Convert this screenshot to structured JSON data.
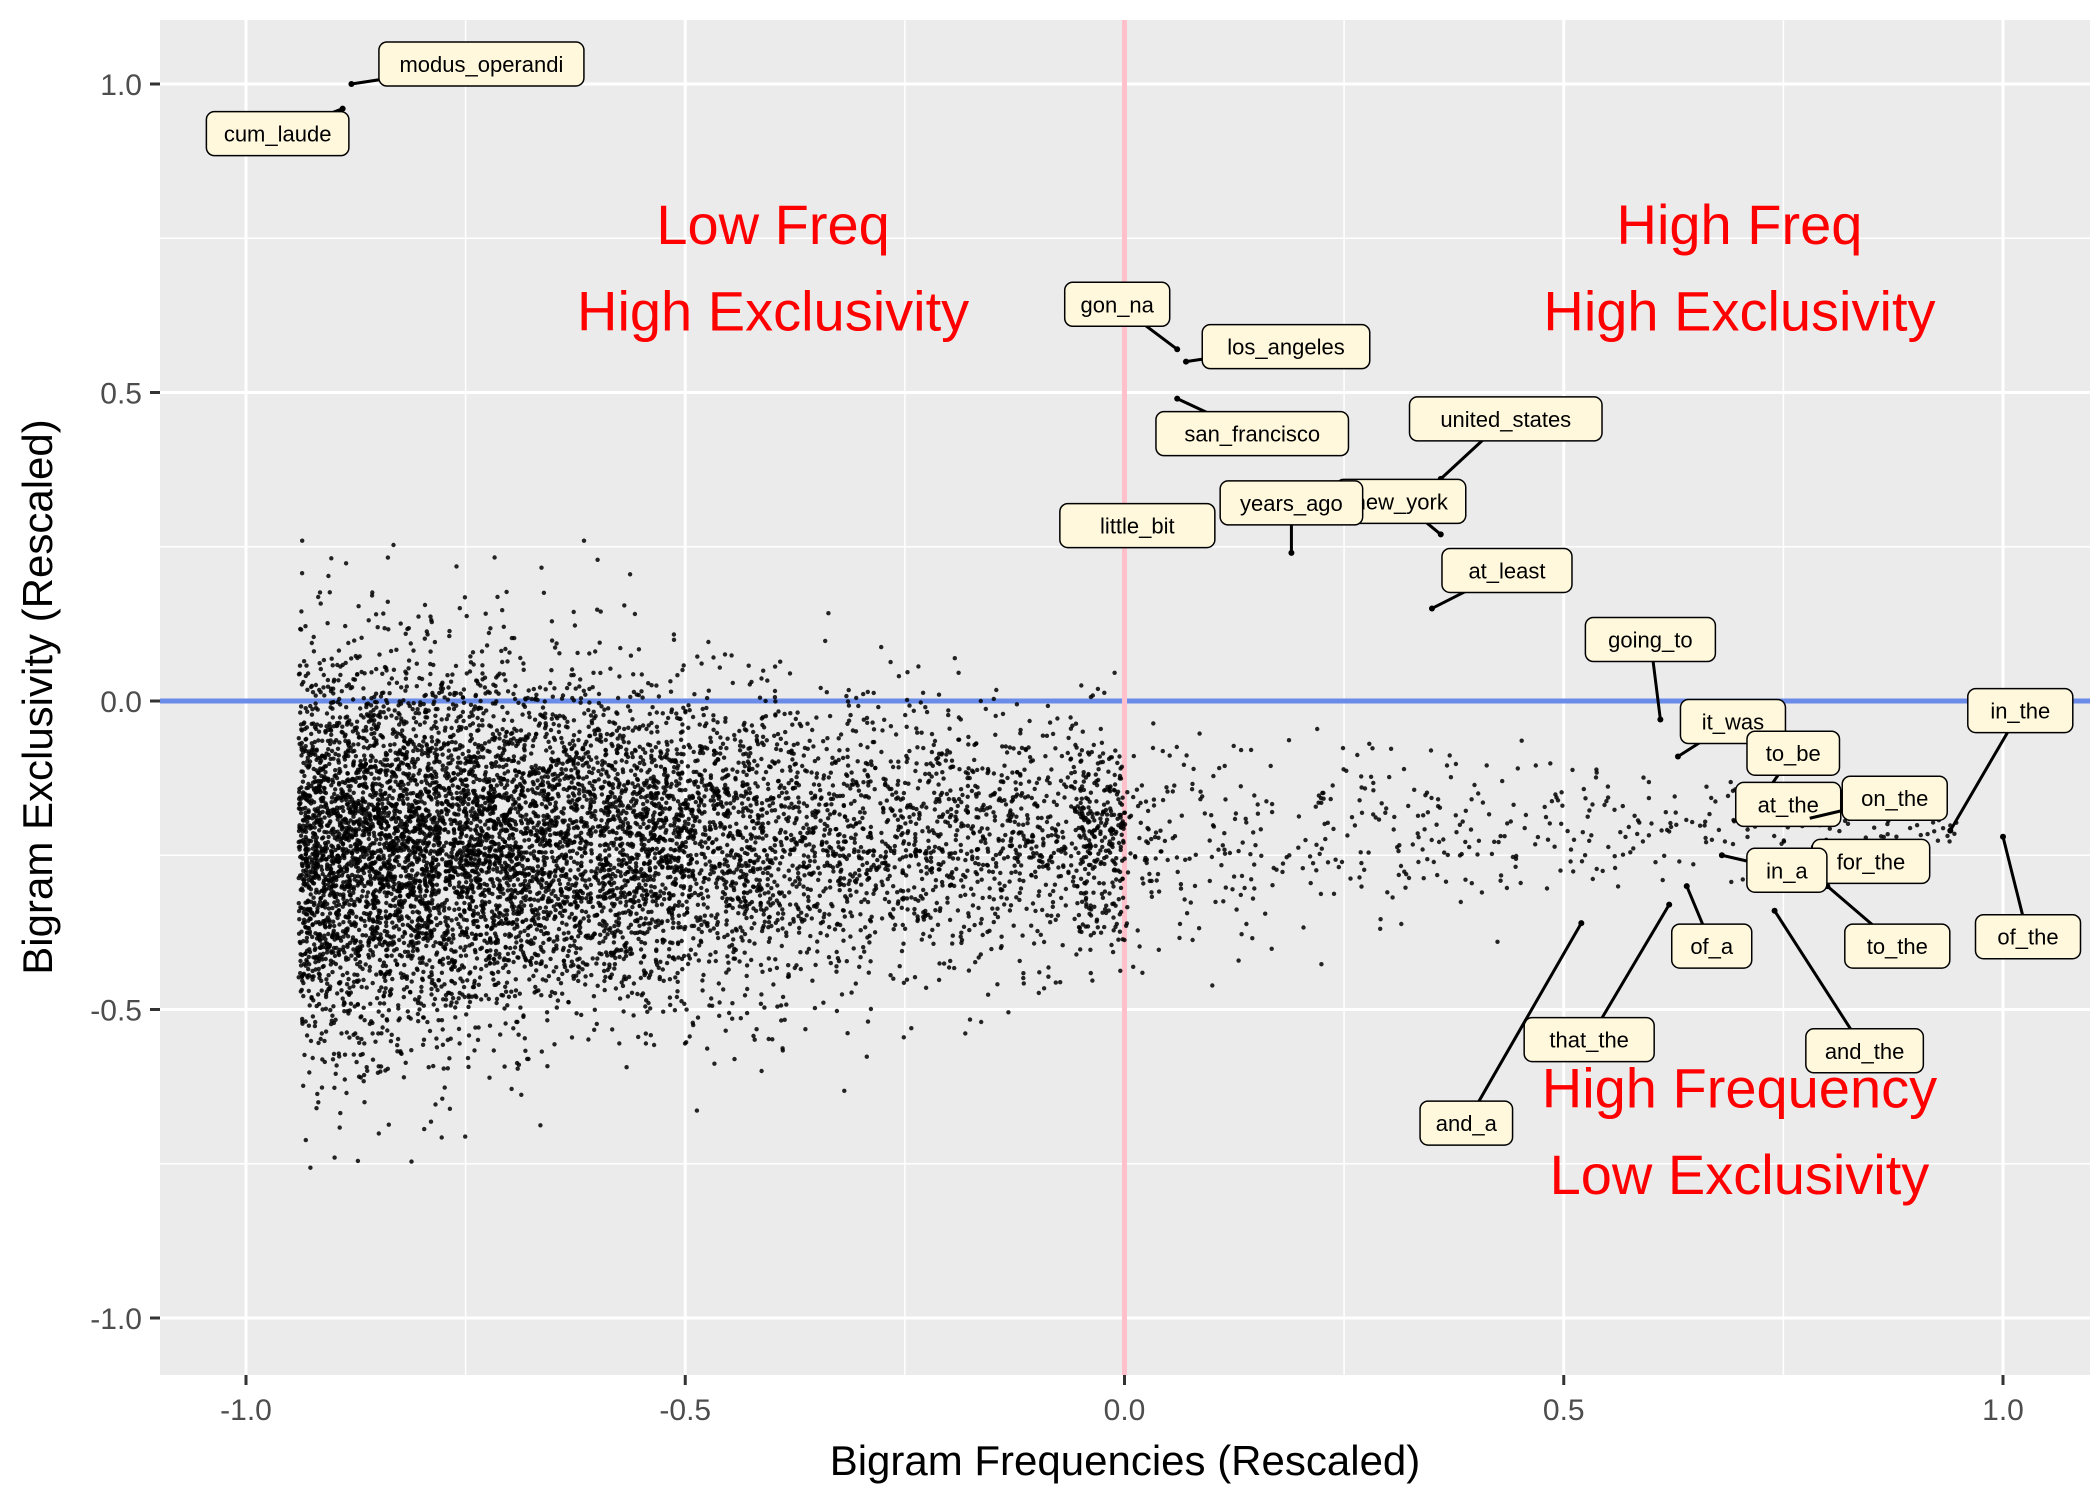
{
  "chart_data": {
    "type": "scatter",
    "title": "",
    "xlabel": "Bigram Frequencies (Rescaled)",
    "ylabel": "Bigram Exclusivity (Rescaled)",
    "xlim": [
      -1.2,
      1.2
    ],
    "ylim": [
      -1.1,
      1.1
    ],
    "x_ticks": [
      {
        "value": -1.0,
        "label": "-1.0"
      },
      {
        "value": -0.5,
        "label": "-0.5"
      },
      {
        "value": 0.0,
        "label": "0.0"
      },
      {
        "value": 0.5,
        "label": "0.5"
      },
      {
        "value": 1.0,
        "label": "1.0"
      }
    ],
    "y_ticks": [
      {
        "value": 1.0,
        "label": "1.0"
      },
      {
        "value": 0.5,
        "label": "0.5"
      },
      {
        "value": 0.0,
        "label": "0.0"
      },
      {
        "value": -0.5,
        "label": "-0.5"
      },
      {
        "value": -1.0,
        "label": "-1.0"
      }
    ],
    "grid": true,
    "background": "#ebebeb",
    "reference_lines": [
      {
        "orientation": "horizontal",
        "value": 0.0,
        "color": "#6a8be8"
      },
      {
        "orientation": "vertical",
        "value": 0.0,
        "color": "#ffc0cb"
      }
    ],
    "annotations": [
      {
        "text": "Low Freq",
        "x": -0.4,
        "y": 0.77,
        "color": "#ff0000"
      },
      {
        "text": "High Exclusivity",
        "x": -0.4,
        "y": 0.63,
        "color": "#ff0000"
      },
      {
        "text": "High Freq",
        "x": 0.7,
        "y": 0.77,
        "color": "#ff0000"
      },
      {
        "text": "High Exclusivity",
        "x": 0.7,
        "y": 0.63,
        "color": "#ff0000"
      },
      {
        "text": "High Frequency",
        "x": 0.7,
        "y": -0.63,
        "color": "#ff0000"
      },
      {
        "text": "Low Exclusivity",
        "x": 0.7,
        "y": -0.77,
        "color": "#ff0000"
      }
    ],
    "labeled_points": [
      {
        "label": "modus_operandi",
        "x": -0.88,
        "y": 1.0
      },
      {
        "label": "cum_laude",
        "x": -0.89,
        "y": 0.96
      },
      {
        "label": "gon_na",
        "x": 0.06,
        "y": 0.57
      },
      {
        "label": "los_angeles",
        "x": 0.07,
        "y": 0.55
      },
      {
        "label": "san_francisco",
        "x": 0.06,
        "y": 0.49
      },
      {
        "label": "united_states",
        "x": 0.36,
        "y": 0.36
      },
      {
        "label": "new_york",
        "x": 0.36,
        "y": 0.27
      },
      {
        "label": "years_ago",
        "x": 0.19,
        "y": 0.24
      },
      {
        "label": "little_bit",
        "x": 0.1,
        "y": 0.26
      },
      {
        "label": "at_least",
        "x": 0.35,
        "y": 0.15
      },
      {
        "label": "going_to",
        "x": 0.61,
        "y": -0.03
      },
      {
        "label": "it_was",
        "x": 0.63,
        "y": -0.09
      },
      {
        "label": "to_be",
        "x": 0.71,
        "y": -0.19
      },
      {
        "label": "at_the",
        "x": 0.71,
        "y": -0.2
      },
      {
        "label": "on_the",
        "x": 0.78,
        "y": -0.19
      },
      {
        "label": "in_the",
        "x": 0.94,
        "y": -0.21
      },
      {
        "label": "for_the",
        "x": 0.77,
        "y": -0.26
      },
      {
        "label": "in_a",
        "x": 0.68,
        "y": -0.25
      },
      {
        "label": "of_a",
        "x": 0.64,
        "y": -0.3
      },
      {
        "label": "to_the",
        "x": 0.8,
        "y": -0.3
      },
      {
        "label": "of_the",
        "x": 1.0,
        "y": -0.22
      },
      {
        "label": "that_the",
        "x": 0.62,
        "y": -0.33
      },
      {
        "label": "and_the",
        "x": 0.74,
        "y": -0.34
      },
      {
        "label": "and_a",
        "x": 0.52,
        "y": -0.36
      }
    ],
    "series": [
      {
        "name": "",
        "distribution": {
          "point_count": 60000,
          "x_mode": -0.72,
          "x_range": [
            -1.0,
            1.0
          ],
          "y_center": -0.22,
          "y_spread_at_mode": 0.55,
          "note_shape": "dense funnel narrowing toward high frequency"
        }
      }
    ]
  }
}
